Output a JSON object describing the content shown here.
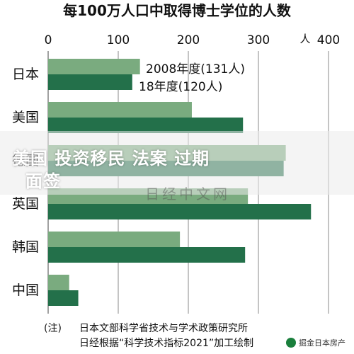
{
  "chart_data": {
    "type": "bar",
    "orientation": "horizontal",
    "title": "每100万人口中取得博士学位的人数",
    "unit": "人",
    "xlim": [
      0,
      400
    ],
    "ticks": [
      0,
      100,
      200,
      300,
      400
    ],
    "grid": true,
    "categories": [
      "日本",
      "美国",
      "德国",
      "英国",
      "韩国",
      "中国"
    ],
    "series": [
      {
        "name": "2008年度(131人)",
        "color": "#7aab7f",
        "values": [
          131,
          205,
          339,
          285,
          188,
          30
        ]
      },
      {
        "name": "18年度(120人)",
        "color": "#23704a",
        "values": [
          120,
          278,
          336,
          375,
          281,
          43
        ]
      }
    ],
    "note": {
      "prefix": "(注)",
      "line1": "日本文部科学省技术与学术政策研究所",
      "line2": "日经根据“科学技术指标2021”加工绘制"
    }
  },
  "overlay": {
    "headline1": "美国  投资移民  法案  过期",
    "headline2": "面签",
    "watermark": "日经中文网",
    "brand": "掘金日本房产"
  }
}
